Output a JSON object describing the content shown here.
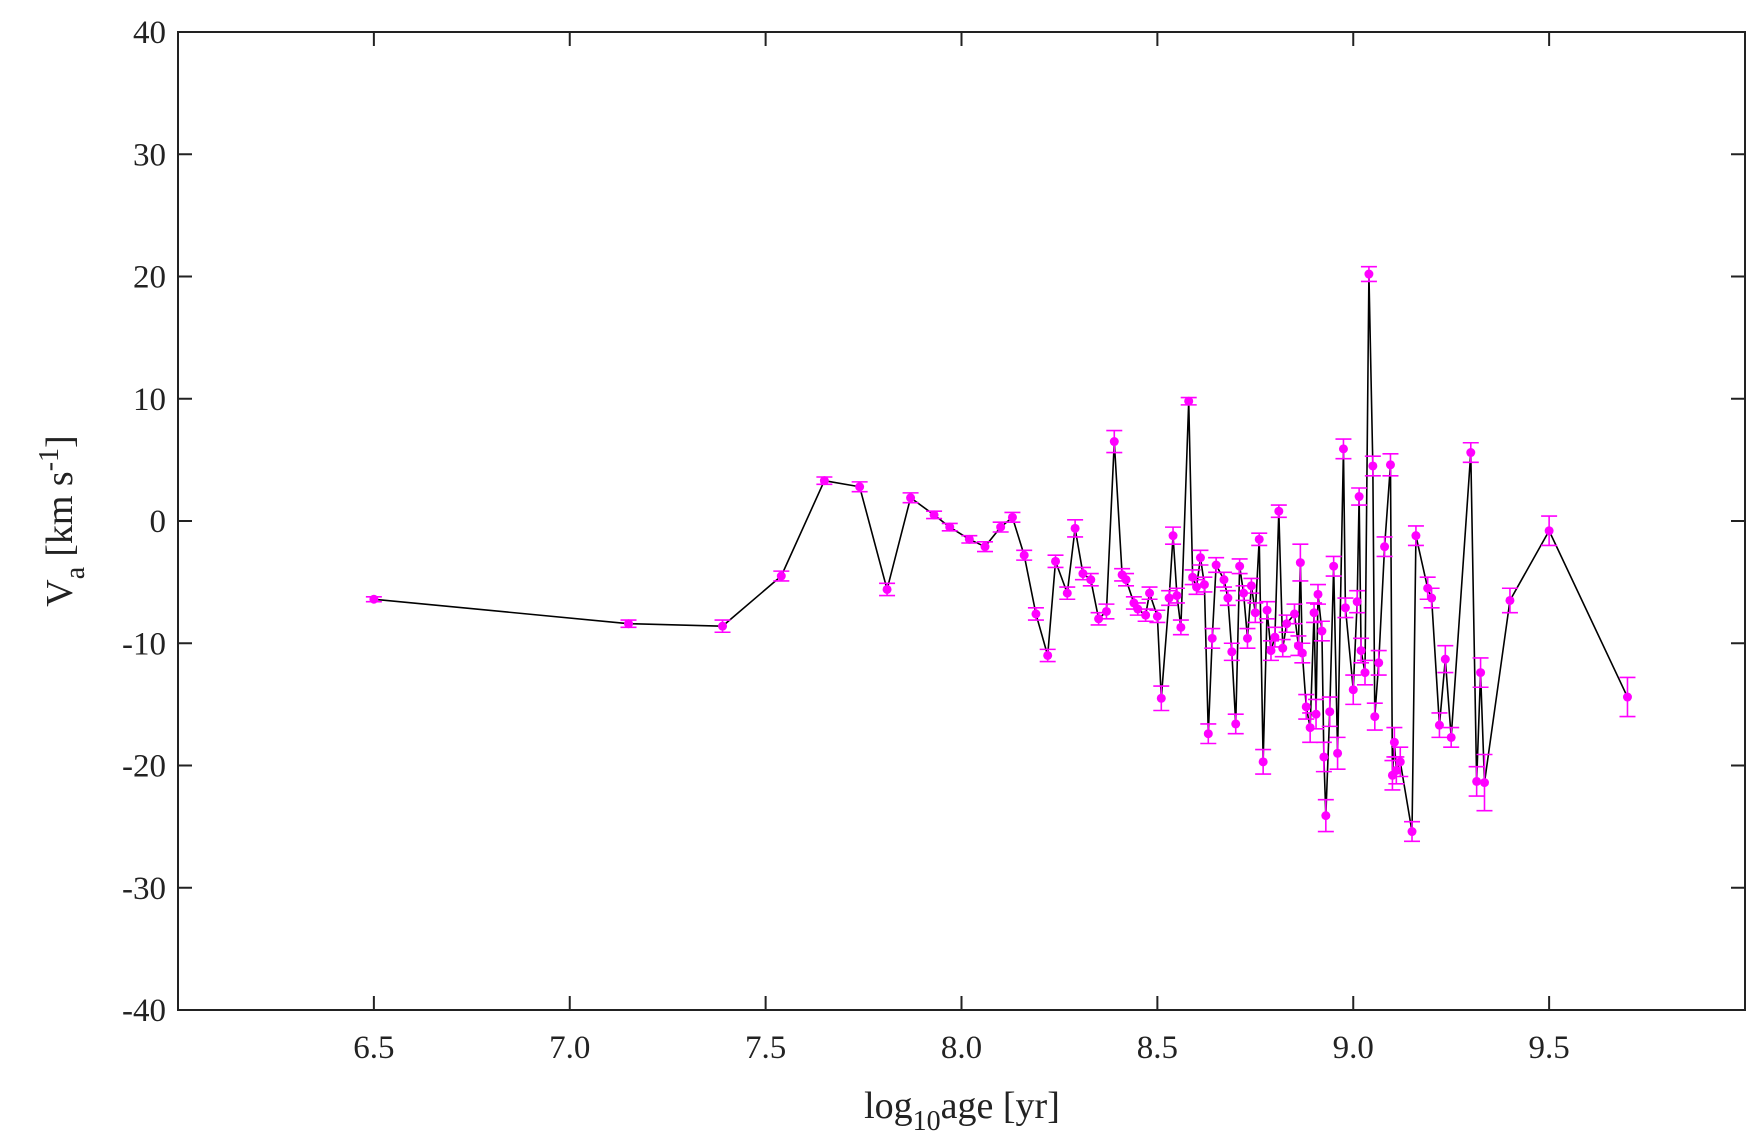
{
  "chart_data": {
    "type": "errorline",
    "xlabel": [
      "log",
      "10",
      "age [yr]"
    ],
    "ylabel": [
      "V",
      "a",
      "[km s",
      "-1",
      "]"
    ],
    "xlim": [
      6,
      10
    ],
    "ylim": [
      -40,
      40
    ],
    "xticks": [
      6.5,
      {
        "value": 7,
        "label": "7.0"
      },
      7.5,
      {
        "value": 8,
        "label": "8.0"
      },
      8.5,
      {
        "value": 9,
        "label": "9.0"
      },
      9.5
    ],
    "yticks": [
      -40,
      -30,
      -20,
      -10,
      0,
      10,
      20,
      30,
      40
    ],
    "line_color": "#000000",
    "series": [
      {
        "color": "#ff00ff",
        "x": [
          6.5,
          7.15,
          7.39,
          7.54,
          7.65,
          7.74,
          7.81,
          7.87,
          7.93,
          7.97,
          8.02,
          8.06,
          8.1,
          8.13,
          8.16,
          8.19,
          8.22,
          8.24,
          8.27,
          8.29,
          8.31,
          8.33,
          8.35,
          8.37,
          8.39,
          8.41,
          8.42,
          8.44,
          8.45,
          8.47,
          8.48,
          8.5,
          8.51,
          8.53,
          8.54,
          8.55,
          8.56,
          8.58,
          8.59,
          8.6,
          8.61,
          8.62,
          8.63,
          8.64,
          8.65,
          8.67,
          8.68,
          8.69,
          8.7,
          8.71,
          8.72,
          8.73,
          8.74,
          8.75,
          8.76,
          8.77,
          8.78,
          8.79,
          8.8,
          8.81,
          8.82,
          8.83,
          8.85,
          8.86,
          8.865,
          8.87,
          8.88,
          8.89,
          8.9,
          8.905,
          8.91,
          8.92,
          8.925,
          8.93,
          8.94,
          8.95,
          8.96,
          8.975,
          8.98,
          9.0,
          9.01,
          9.015,
          9.02,
          9.03,
          9.04,
          9.05,
          9.055,
          9.065,
          9.08,
          9.095,
          9.1,
          9.105,
          9.11,
          9.12,
          9.15,
          9.16,
          9.19,
          9.2,
          9.22,
          9.235,
          9.25,
          9.3,
          9.315,
          9.325,
          9.335,
          9.4,
          9.5,
          9.7
        ],
        "values": [
          -6.4,
          -8.4,
          -8.6,
          -4.5,
          3.3,
          2.8,
          -5.6,
          1.9,
          0.5,
          -0.5,
          -1.5,
          -2.1,
          -0.5,
          0.3,
          -2.8,
          -7.6,
          -11.0,
          -3.3,
          -5.9,
          -0.6,
          -4.3,
          -4.8,
          -8.0,
          -7.4,
          6.5,
          -4.4,
          -4.8,
          -6.7,
          -7.2,
          -7.7,
          -5.9,
          -7.8,
          -14.5,
          -6.3,
          -1.2,
          -6.1,
          -8.7,
          9.8,
          -4.6,
          -5.4,
          -3.0,
          -5.2,
          -17.4,
          -9.6,
          -3.6,
          -4.8,
          -6.3,
          -10.7,
          -16.6,
          -3.7,
          -5.9,
          -9.6,
          -5.3,
          -7.5,
          -1.5,
          -19.7,
          -7.3,
          -10.6,
          -9.5,
          0.8,
          -10.4,
          -8.4,
          -7.6,
          -10.2,
          -3.4,
          -10.8,
          -15.2,
          -16.9,
          -7.5,
          -15.8,
          -6.0,
          -9.0,
          -19.3,
          -24.1,
          -15.6,
          -3.7,
          -19.0,
          5.9,
          -7.1,
          -13.8,
          -6.6,
          2.0,
          -10.6,
          -12.4,
          20.2,
          4.5,
          -16.0,
          -11.6,
          -2.1,
          4.6,
          -20.8,
          -18.1,
          -20.4,
          -19.7,
          -25.4,
          -1.2,
          -5.5,
          -6.3,
          -16.7,
          -11.3,
          -17.7,
          5.6,
          -21.3,
          -12.4,
          -21.4,
          -6.5,
          -0.8,
          -14.4
        ],
        "errors": [
          0.2,
          0.3,
          0.5,
          0.4,
          0.3,
          0.4,
          0.5,
          0.4,
          0.3,
          0.3,
          0.3,
          0.4,
          0.4,
          0.4,
          0.4,
          0.5,
          0.5,
          0.5,
          0.5,
          0.7,
          0.5,
          0.5,
          0.5,
          0.6,
          0.9,
          0.5,
          0.5,
          0.5,
          0.5,
          0.5,
          0.5,
          0.5,
          1.0,
          0.6,
          0.7,
          0.6,
          0.6,
          0.3,
          0.6,
          0.6,
          0.6,
          0.6,
          0.8,
          0.8,
          0.6,
          0.6,
          0.6,
          0.7,
          0.8,
          0.6,
          0.6,
          0.8,
          0.6,
          0.8,
          0.5,
          1.0,
          0.7,
          0.8,
          0.8,
          0.5,
          0.7,
          0.7,
          0.8,
          0.8,
          1.5,
          0.8,
          1.0,
          1.2,
          0.8,
          1.2,
          0.8,
          0.8,
          1.2,
          1.3,
          1.2,
          0.8,
          1.3,
          0.8,
          0.8,
          1.2,
          0.9,
          0.7,
          1.0,
          1.0,
          0.6,
          0.8,
          1.1,
          1.0,
          0.8,
          0.9,
          1.2,
          1.2,
          1.1,
          1.2,
          0.8,
          0.8,
          0.9,
          0.8,
          1.0,
          1.1,
          0.8,
          0.8,
          1.2,
          1.2,
          2.3,
          1.0,
          1.2,
          1.6
        ]
      }
    ]
  }
}
